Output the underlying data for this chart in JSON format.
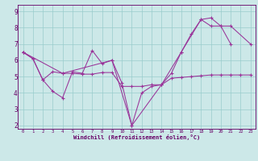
{
  "bg_color": "#cce8e8",
  "line_color": "#993399",
  "grid_color": "#99cccc",
  "tick_color": "#660066",
  "xlabel": "Windchill (Refroidissement éolien,°C)",
  "xlim": [
    -0.5,
    23.5
  ],
  "ylim": [
    1.8,
    9.4
  ],
  "xticks": [
    0,
    1,
    2,
    3,
    4,
    5,
    6,
    7,
    8,
    9,
    10,
    11,
    12,
    13,
    14,
    15,
    16,
    17,
    18,
    19,
    20,
    21,
    22,
    23
  ],
  "yticks": [
    2,
    3,
    4,
    5,
    6,
    7,
    8,
    9
  ],
  "line1_x": [
    0,
    1,
    2,
    3,
    4,
    5,
    6,
    7,
    8,
    9,
    10,
    11,
    12,
    13,
    14,
    15,
    16,
    17,
    18,
    19,
    20,
    21
  ],
  "line1_y": [
    6.5,
    6.1,
    4.8,
    4.1,
    3.7,
    5.3,
    5.2,
    6.6,
    5.8,
    6.0,
    4.6,
    2.0,
    4.0,
    4.4,
    4.5,
    5.2,
    6.5,
    7.6,
    8.5,
    8.1,
    8.1,
    7.0
  ],
  "line2_x": [
    0,
    1,
    2,
    3,
    4,
    5,
    6,
    7,
    8,
    9,
    10,
    11,
    12,
    13,
    14,
    15,
    16,
    17,
    18,
    19,
    20,
    21,
    22,
    23
  ],
  "line2_y": [
    6.5,
    6.1,
    4.8,
    5.3,
    5.2,
    5.2,
    5.15,
    5.15,
    5.25,
    5.25,
    4.4,
    4.4,
    4.4,
    4.5,
    4.5,
    4.9,
    4.95,
    5.0,
    5.05,
    5.1,
    5.1,
    5.1,
    5.1,
    5.1
  ],
  "line3_x": [
    0,
    4,
    9,
    11,
    14,
    16,
    18,
    19,
    20,
    21,
    23
  ],
  "line3_y": [
    6.5,
    5.2,
    6.0,
    2.0,
    4.5,
    6.5,
    8.5,
    8.6,
    8.1,
    8.1,
    7.0
  ]
}
